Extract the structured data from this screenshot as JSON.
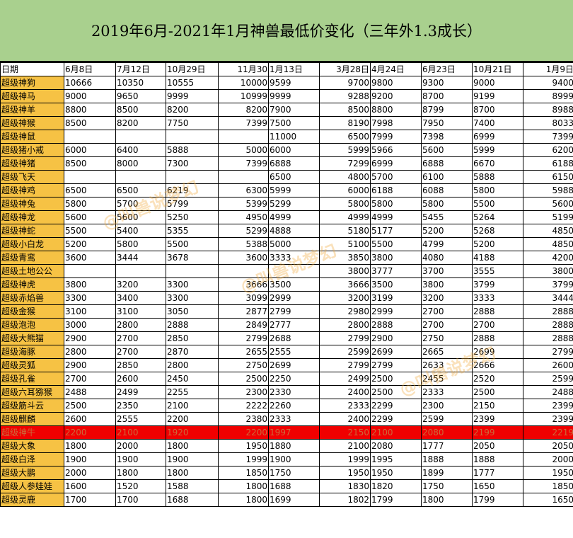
{
  "title": "2019年6月-2021年1月神兽最低价变化（三年外1.3成长）",
  "columns": [
    "日期",
    "6月8日",
    "7月12日",
    "10月29日",
    "11月30",
    "1月13日",
    "3月28日",
    "4月24日",
    "6月23日",
    "10月21日",
    "1月9日"
  ],
  "highlight_row": "超级神牛",
  "watermark": "@叫兽说梦幻",
  "colors": {
    "title_bg": "#a9d08e",
    "name_bg": "#f6c244",
    "highlight_bg": "#f00000"
  },
  "rows": [
    [
      "超级神狗",
      "10666",
      "10350",
      "10555",
      "10000",
      "9599",
      "9700",
      "9800",
      "9300",
      "9000",
      "9400"
    ],
    [
      "超级神马",
      "9000",
      "9650",
      "9999",
      "10999",
      "9999",
      "9288",
      "9200",
      "8700",
      "9199",
      "8999"
    ],
    [
      "超级神羊",
      "8800",
      "8500",
      "8200",
      "8200",
      "7900",
      "8500",
      "8800",
      "8799",
      "8700",
      "8988"
    ],
    [
      "超级神猴",
      "8500",
      "8200",
      "7750",
      "7399",
      "7500",
      "8190",
      "7998",
      "7950",
      "7400",
      "8033"
    ],
    [
      "超级神鼠",
      "",
      "",
      "",
      "",
      "11000",
      "6500",
      "7999",
      "7398",
      "6999",
      "7399"
    ],
    [
      "超级猪小戒",
      "6000",
      "6400",
      "5888",
      "5000",
      "6000",
      "5999",
      "5966",
      "5600",
      "5999",
      "6200"
    ],
    [
      "超级神猪",
      "8500",
      "8000",
      "7300",
      "7399",
      "6888",
      "7299",
      "6999",
      "6888",
      "6670",
      "6188"
    ],
    [
      "超级飞天",
      "",
      "",
      "",
      "",
      "6500",
      "4800",
      "5700",
      "6100",
      "5888",
      "6150"
    ],
    [
      "超级神鸡",
      "6500",
      "6500",
      "6219",
      "6300",
      "5999",
      "6000",
      "6188",
      "6088",
      "5800",
      "5988"
    ],
    [
      "超级神兔",
      "5800",
      "5700",
      "5799",
      "5399",
      "5299",
      "5800",
      "5800",
      "5800",
      "5500",
      "5600"
    ],
    [
      "超级神龙",
      "5600",
      "5600",
      "5250",
      "4950",
      "4999",
      "4999",
      "4999",
      "5455",
      "5264",
      "5199"
    ],
    [
      "超级神蛇",
      "5500",
      "5400",
      "5355",
      "5299",
      "4888",
      "5180",
      "5177",
      "5200",
      "5268",
      "4850"
    ],
    [
      "超级小白龙",
      "5200",
      "5800",
      "5500",
      "5388",
      "5000",
      "5100",
      "5500",
      "4799",
      "5200",
      "4850"
    ],
    [
      "超级青鸾",
      "3600",
      "3444",
      "3678",
      "3600",
      "3333",
      "3850",
      "3800",
      "4080",
      "4188",
      "4200"
    ],
    [
      "超级土地公公",
      "",
      "",
      "",
      "",
      "",
      "3800",
      "3777",
      "3700",
      "3555",
      "3800"
    ],
    [
      "超级神虎",
      "3800",
      "3200",
      "3300",
      "3666",
      "3500",
      "3666",
      "3500",
      "3800",
      "3799",
      "3799"
    ],
    [
      "超级赤焰兽",
      "3300",
      "3400",
      "3300",
      "3099",
      "2999",
      "3200",
      "3199",
      "3200",
      "3333",
      "3444"
    ],
    [
      "超级金猴",
      "3100",
      "3100",
      "3050",
      "2877",
      "2799",
      "2980",
      "2999",
      "2700",
      "2888",
      "2888"
    ],
    [
      "超级泡泡",
      "3000",
      "2800",
      "2888",
      "2849",
      "2777",
      "2800",
      "2888",
      "2700",
      "2700",
      "2888"
    ],
    [
      "超级大熊猫",
      "2900",
      "2700",
      "2850",
      "2799",
      "2688",
      "2799",
      "2900",
      "2750",
      "2888",
      "2888"
    ],
    [
      "超级海豚",
      "2800",
      "2700",
      "2870",
      "2655",
      "2555",
      "2599",
      "2699",
      "2665",
      "2699",
      "2799"
    ],
    [
      "超级灵狐",
      "2900",
      "2850",
      "2800",
      "2750",
      "2699",
      "2799",
      "2799",
      "2633",
      "2666",
      "2600"
    ],
    [
      "超级孔雀",
      "2700",
      "2600",
      "2450",
      "2500",
      "2250",
      "2499",
      "2500",
      "2455",
      "2520",
      "2599"
    ],
    [
      "超级六耳猕猴",
      "2488",
      "2499",
      "2255",
      "2300",
      "2330",
      "2400",
      "2500",
      "2333",
      "2500",
      "2488"
    ],
    [
      "超级筋斗云",
      "2500",
      "2350",
      "2100",
      "2222",
      "2260",
      "2333",
      "2299",
      "2300",
      "2150",
      "2399"
    ],
    [
      "超级麒麟",
      "2600",
      "2555",
      "2200",
      "2380",
      "2333",
      "2400",
      "2299",
      "2599",
      "2399",
      "2399"
    ],
    [
      "超级神牛",
      "2200",
      "2100",
      "1920",
      "2200",
      "1997",
      "2150",
      "2100",
      "2080",
      "2199",
      "2219"
    ],
    [
      "超级大象",
      "1800",
      "2000",
      "1800",
      "1950",
      "1880",
      "2100",
      "2080",
      "1777",
      "2050",
      "2050"
    ],
    [
      "超级白泽",
      "1900",
      "1900",
      "1900",
      "1999",
      "1900",
      "1999",
      "1995",
      "1888",
      "1888",
      "2000"
    ],
    [
      "超级大鹏",
      "2000",
      "1800",
      "1800",
      "1850",
      "1750",
      "1950",
      "1950",
      "1899",
      "1777",
      "1950"
    ],
    [
      "超级人参娃娃",
      "1600",
      "1520",
      "1588",
      "1800",
      "1688",
      "1830",
      "1820",
      "1750",
      "1650",
      "1850"
    ],
    [
      "超级灵鹿",
      "1700",
      "1700",
      "1688",
      "1800",
      "1699",
      "1802",
      "1799",
      "1800",
      "1799",
      "1650"
    ]
  ]
}
